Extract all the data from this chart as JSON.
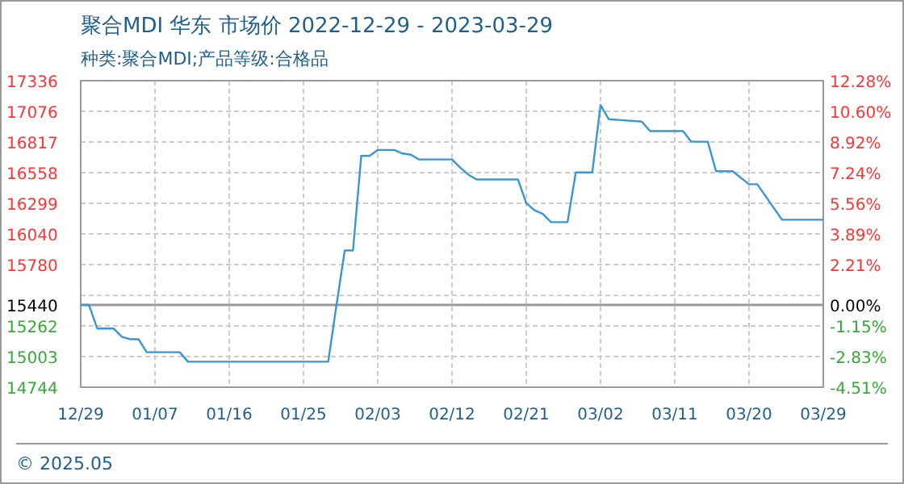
{
  "chart_data": {
    "type": "line",
    "title": "聚合MDI 华东 市场价 2022-12-29 - 2023-03-29",
    "subtitle": "种类:聚合MDI;产品等级:合格品",
    "annotations": [
      "© 2025.05"
    ],
    "x": [
      "2022-12-29",
      "2022-12-30",
      "2022-12-31",
      "2023-01-02",
      "2023-01-03",
      "2023-01-04",
      "2023-01-05",
      "2023-01-06",
      "2023-01-10",
      "2023-01-11",
      "2023-01-28",
      "2023-01-29",
      "2023-01-30",
      "2023-01-31",
      "2023-02-01",
      "2023-02-02",
      "2023-02-03",
      "2023-02-05",
      "2023-02-06",
      "2023-02-07",
      "2023-02-08",
      "2023-02-12",
      "2023-02-13",
      "2023-02-14",
      "2023-02-15",
      "2023-02-20",
      "2023-02-21",
      "2023-02-22",
      "2023-02-23",
      "2023-02-24",
      "2023-02-26",
      "2023-02-27",
      "2023-03-01",
      "2023-03-02",
      "2023-03-03",
      "2023-03-07",
      "2023-03-08",
      "2023-03-12",
      "2023-03-13",
      "2023-03-15",
      "2023-03-16",
      "2023-03-18",
      "2023-03-20",
      "2023-03-21",
      "2023-03-24",
      "2023-03-29"
    ],
    "series": [
      {
        "color": "#3a96d2",
        "values": [
          15440,
          15440,
          15240,
          15240,
          15170,
          15150,
          15150,
          15040,
          15040,
          14960,
          14960,
          15440,
          15900,
          15900,
          16700,
          16700,
          16750,
          16750,
          16720,
          16710,
          16670,
          16670,
          16600,
          16540,
          16500,
          16500,
          16300,
          16240,
          16210,
          16140,
          16140,
          16560,
          16560,
          17130,
          17010,
          16990,
          16910,
          16910,
          16820,
          16820,
          16570,
          16570,
          16460,
          16460,
          16160,
          16160
        ]
      }
    ],
    "xlim": [
      "2022-12-29",
      "2023-03-29"
    ],
    "xticks": [
      {
        "value": "2022-12-29",
        "label": "12/29"
      },
      {
        "value": "2023-01-07",
        "label": "01/07"
      },
      {
        "value": "2023-01-16",
        "label": "01/16"
      },
      {
        "value": "2023-01-25",
        "label": "01/25"
      },
      {
        "value": "2023-02-03",
        "label": "02/03"
      },
      {
        "value": "2023-02-12",
        "label": "02/12"
      },
      {
        "value": "2023-02-21",
        "label": "02/21"
      },
      {
        "value": "2023-03-02",
        "label": "03/02"
      },
      {
        "value": "2023-03-11",
        "label": "03/11"
      },
      {
        "value": "2023-03-20",
        "label": "03/20"
      },
      {
        "value": "2023-03-29",
        "label": "03/29"
      }
    ],
    "ylim": [
      14744,
      17336
    ],
    "yticks": [
      14744,
      15003,
      15262,
      15440,
      {
        "value": 15520,
        "label": null
      },
      15780,
      16040,
      16299,
      16558,
      16817,
      17076,
      17336
    ],
    "y2lim": [
      -4.51,
      12.28
    ],
    "y2ticks": [
      {
        "value": -4.51,
        "label": "-4.51%"
      },
      {
        "value": -2.83,
        "label": "-2.83%"
      },
      {
        "value": -1.15,
        "label": "-1.15%"
      },
      {
        "value": 0,
        "label": "0.00%"
      },
      {
        "value": 2.21,
        "label": "2.21%"
      },
      {
        "value": 3.89,
        "label": "3.89%"
      },
      {
        "value": 5.56,
        "label": "5.56%"
      },
      {
        "value": 7.24,
        "label": "7.24%"
      },
      {
        "value": 8.92,
        "label": "8.92%"
      },
      {
        "value": 10.6,
        "label": "10.60%"
      },
      {
        "value": 12.28,
        "label": "12.28%"
      }
    ],
    "ref_lines": [
      {
        "axis": "y",
        "value": 15440,
        "label": null,
        "color": "#999999"
      }
    ],
    "grid": true,
    "marker": "none",
    "line_style": "solid"
  }
}
